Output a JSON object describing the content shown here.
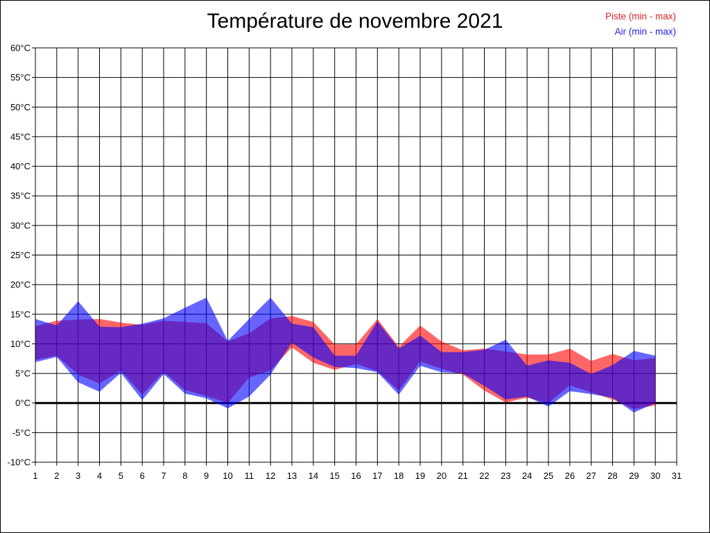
{
  "title": "Température de novembre 2021",
  "legend": {
    "piste": "Piste (min - max)",
    "air": "Air (min - max)"
  },
  "colors": {
    "piste_band": "#ff0000",
    "air_band": "#0000ff",
    "piste_legend_text": "#dd2222",
    "air_legend_text": "#2222dd",
    "grid": "#000000",
    "zero_line": "#000000",
    "frame": "#000000",
    "background": "#ffffff"
  },
  "chart_data": {
    "type": "area",
    "subtype": "min-max-range-bands",
    "title": "Température de novembre 2021",
    "xlabel": "",
    "ylabel": "",
    "grid": true,
    "legend_position": "top-right",
    "xlim": [
      1,
      31
    ],
    "ylim": [
      -10,
      60
    ],
    "y_tick_step": 5,
    "zero_line": true,
    "x": [
      1,
      2,
      3,
      4,
      5,
      6,
      7,
      8,
      9,
      10,
      11,
      12,
      13,
      14,
      15,
      16,
      17,
      18,
      19,
      20,
      21,
      22,
      23,
      24,
      25,
      26,
      27,
      28,
      29,
      30
    ],
    "series": [
      {
        "name": "Piste (min - max)",
        "color": "#ff0000",
        "min": [
          7.3,
          8.0,
          4.8,
          3.3,
          5.5,
          1.4,
          5.3,
          2.2,
          1.2,
          0.0,
          4.3,
          5.5,
          9.4,
          6.8,
          5.6,
          6.6,
          5.4,
          2.1,
          7.0,
          5.8,
          4.8,
          2.1,
          0.1,
          0.9,
          0.0,
          3.0,
          1.8,
          0.6,
          -1.0,
          -0.4
        ],
        "max": [
          13.0,
          13.9,
          14.1,
          14.2,
          13.6,
          13.2,
          13.9,
          13.7,
          13.5,
          10.4,
          11.8,
          14.3,
          14.7,
          13.7,
          9.9,
          9.9,
          14.2,
          9.5,
          13.1,
          10.4,
          8.9,
          9.2,
          8.7,
          8.2,
          8.2,
          9.2,
          7.1,
          8.3,
          7.2,
          7.6
        ]
      },
      {
        "name": "Air (min - max)",
        "color": "#0000ff",
        "min": [
          6.9,
          7.8,
          3.5,
          1.9,
          5.1,
          0.5,
          4.9,
          1.6,
          0.8,
          -0.9,
          1.1,
          4.8,
          10.2,
          7.7,
          6.1,
          5.9,
          5.2,
          1.4,
          6.3,
          5.2,
          5.0,
          2.9,
          0.6,
          1.1,
          -0.6,
          2.0,
          1.5,
          0.9,
          -1.6,
          0.0
        ],
        "max": [
          14.2,
          13.1,
          17.2,
          12.9,
          12.8,
          13.4,
          14.3,
          16.1,
          17.8,
          10.5,
          14.2,
          17.8,
          13.4,
          12.8,
          8.0,
          8.0,
          13.8,
          9.2,
          11.4,
          8.6,
          8.6,
          9.0,
          10.7,
          6.3,
          7.2,
          6.8,
          4.9,
          6.4,
          8.8,
          8.0
        ]
      }
    ],
    "axes": {
      "x_ticks": [
        "1",
        "2",
        "3",
        "4",
        "5",
        "6",
        "7",
        "8",
        "9",
        "10",
        "11",
        "12",
        "13",
        "14",
        "15",
        "16",
        "17",
        "18",
        "19",
        "20",
        "21",
        "22",
        "23",
        "24",
        "25",
        "26",
        "27",
        "28",
        "29",
        "30",
        "31"
      ],
      "y_ticks": [
        "60°C",
        "55°C",
        "50°C",
        "45°C",
        "40°C",
        "35°C",
        "30°C",
        "25°C",
        "20°C",
        "15°C",
        "10°C",
        "5°C",
        "0°C",
        "-5°C",
        "-10°C"
      ]
    }
  }
}
